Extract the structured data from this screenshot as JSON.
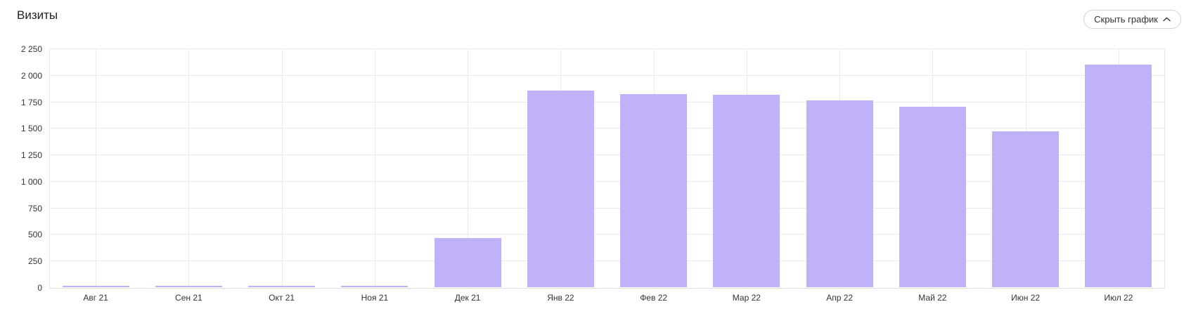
{
  "header": {
    "title": "Визиты",
    "toggle_button": {
      "label": "Скрыть график",
      "icon": "chevron-up-icon"
    }
  },
  "colors": {
    "bar": "#c1b1f8",
    "grid": "#ebebeb",
    "axis_line": "#e0e0e0",
    "axis_text": "#333333",
    "title_text": "#1f1f1f",
    "button_border": "#d2d2d2",
    "button_text": "#333333"
  },
  "chart_data": {
    "type": "bar",
    "title": "Визиты",
    "categories": [
      "Авг 21",
      "Сен 21",
      "Окт 21",
      "Ноя 21",
      "Дек 21",
      "Янв 22",
      "Фев 22",
      "Мар 22",
      "Апр 22",
      "Май 22",
      "Июн 22",
      "Июл 22"
    ],
    "values": [
      15,
      12,
      12,
      12,
      460,
      1850,
      1820,
      1810,
      1760,
      1700,
      1470,
      2095
    ],
    "xlabel": "",
    "ylabel": "",
    "ylim": [
      0,
      2250
    ],
    "ytick_step": 250,
    "ytick_labels": [
      "0",
      "250",
      "500",
      "750",
      "1 000",
      "1 250",
      "1 500",
      "1 750",
      "2 000",
      "2 250"
    ],
    "grid": true,
    "legend": "none",
    "bar_color": "#c1b1f8"
  }
}
